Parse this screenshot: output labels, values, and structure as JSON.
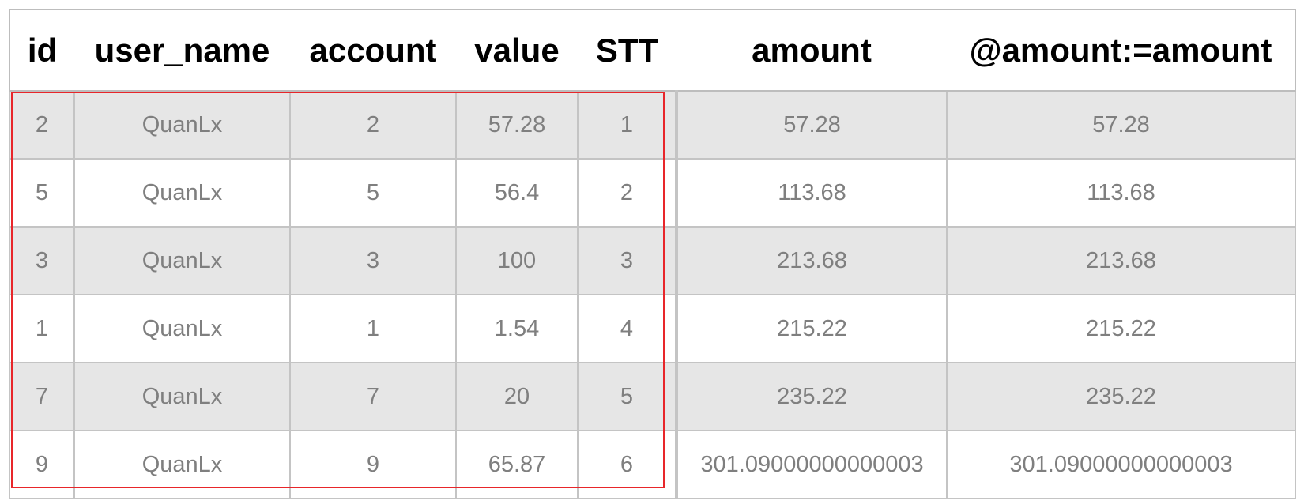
{
  "table": {
    "headers": [
      "id",
      "user_name",
      "account",
      "value",
      "STT",
      "amount",
      "@amount:=amount"
    ],
    "rows": [
      [
        "2",
        "QuanLx",
        "2",
        "57.28",
        "1",
        "57.28",
        "57.28"
      ],
      [
        "5",
        "QuanLx",
        "5",
        "56.4",
        "2",
        "113.68",
        "113.68"
      ],
      [
        "3",
        "QuanLx",
        "3",
        "100",
        "3",
        "213.68",
        "213.68"
      ],
      [
        "1",
        "QuanLx",
        "1",
        "1.54",
        "4",
        "215.22",
        "215.22"
      ],
      [
        "7",
        "QuanLx",
        "7",
        "20",
        "5",
        "235.22",
        "235.22"
      ],
      [
        "9",
        "QuanLx",
        "9",
        "65.87",
        "6",
        "301.09000000000003",
        "301.09000000000003"
      ]
    ]
  },
  "colors": {
    "row_stripe": "#e6e6e6",
    "highlight_box": "#e8262a",
    "cell_text": "#7f7f7f"
  }
}
